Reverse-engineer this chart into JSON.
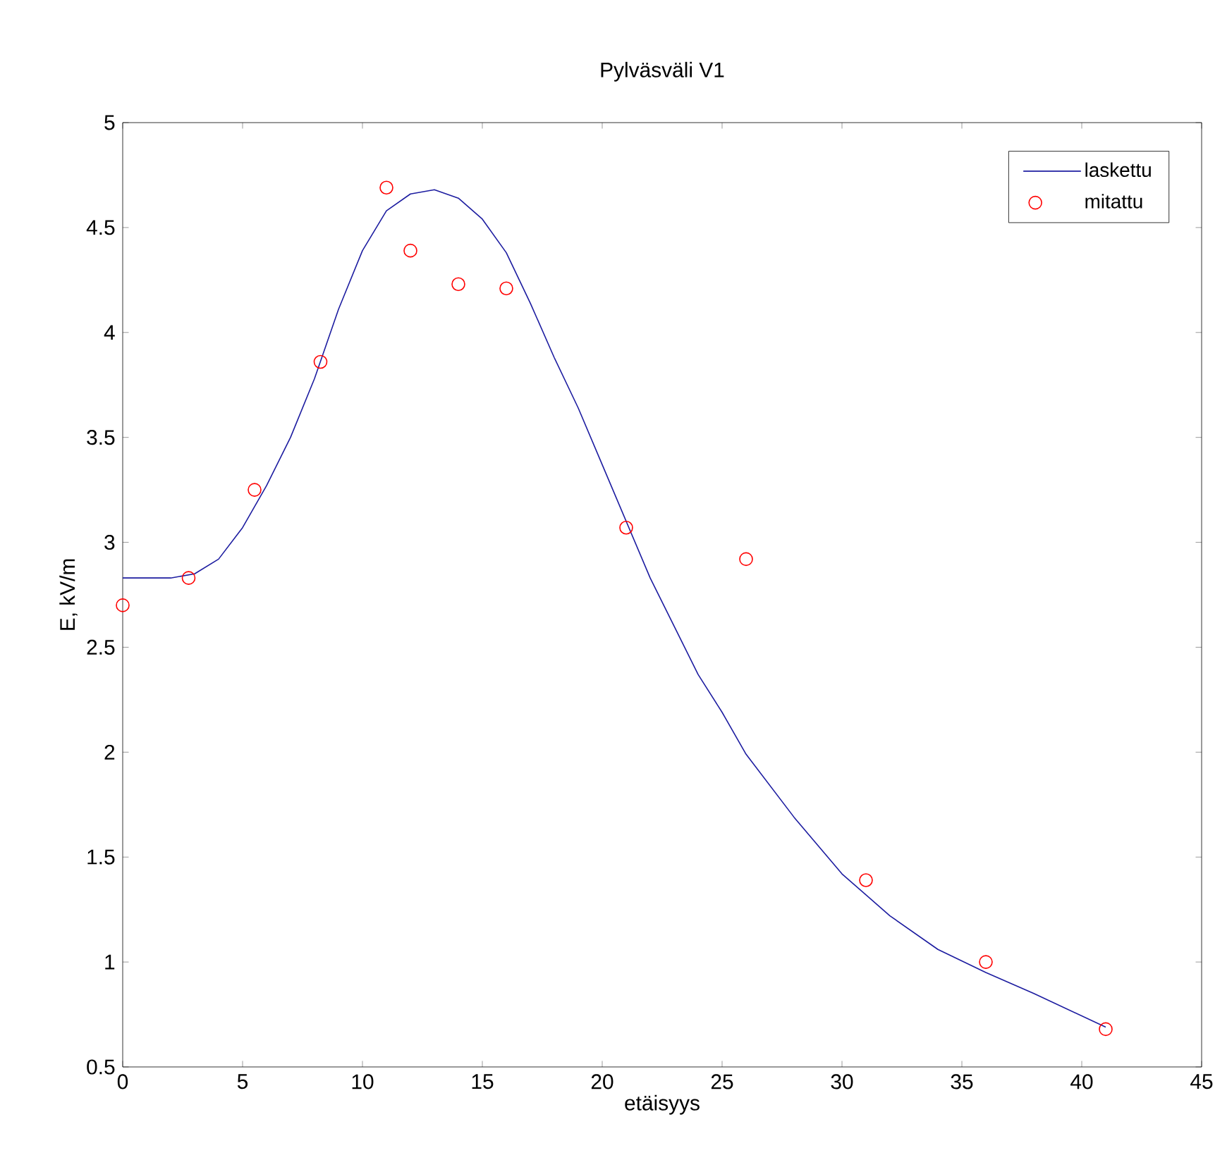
{
  "chart_data": {
    "type": "line",
    "title": "Pylväsväli V1",
    "xlabel": "etäisyys",
    "ylabel": "E, kV/m",
    "xlim": [
      0,
      45
    ],
    "ylim": [
      0.5,
      5
    ],
    "xticks": [
      0,
      5,
      10,
      15,
      20,
      25,
      30,
      35,
      40,
      45
    ],
    "yticks": [
      0.5,
      1,
      1.5,
      2,
      2.5,
      3,
      3.5,
      4,
      4.5,
      5
    ],
    "legend": "top right",
    "series": [
      {
        "name": "laskettu",
        "marker": "none",
        "line_style": "solid",
        "color": "#1c1ca0",
        "x": [
          0,
          2,
          3,
          4,
          5,
          6,
          7,
          8,
          9,
          10,
          11,
          12,
          13,
          14,
          15,
          16,
          17,
          18,
          19,
          20,
          21,
          22,
          23,
          24,
          25,
          26,
          28,
          30,
          32,
          34,
          36,
          38,
          41
        ],
        "values": [
          2.83,
          2.83,
          2.85,
          2.92,
          3.07,
          3.27,
          3.5,
          3.78,
          4.11,
          4.39,
          4.58,
          4.66,
          4.68,
          4.64,
          4.54,
          4.38,
          4.14,
          3.88,
          3.64,
          3.37,
          3.1,
          2.83,
          2.6,
          2.37,
          2.19,
          1.99,
          1.69,
          1.42,
          1.22,
          1.06,
          0.95,
          0.85,
          0.69
        ]
      },
      {
        "name": "mitattu",
        "type": "scatter",
        "marker": "circle",
        "color": "#ff0000",
        "x": [
          0,
          2.75,
          5.5,
          8.25,
          11,
          12,
          14,
          16,
          21,
          26,
          31,
          36,
          41
        ],
        "values": [
          2.7,
          2.83,
          3.25,
          3.86,
          4.69,
          4.39,
          4.23,
          4.21,
          3.07,
          2.92,
          1.39,
          1.0,
          0.68
        ]
      }
    ]
  }
}
